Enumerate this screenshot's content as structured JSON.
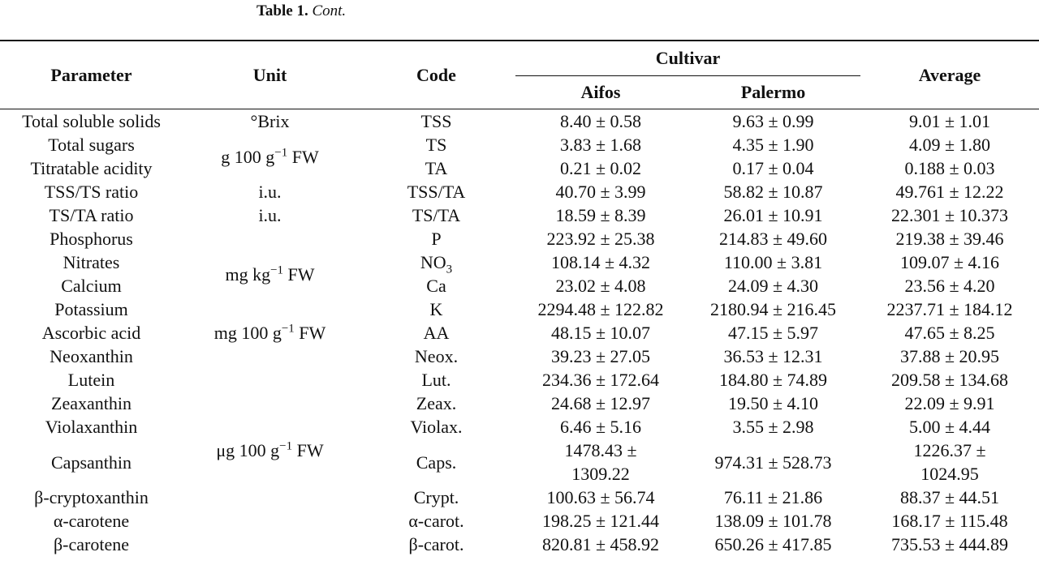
{
  "caption": {
    "label": "Table 1.",
    "text": "Cont."
  },
  "header": {
    "parameter": "Parameter",
    "unit": "Unit",
    "code": "Code",
    "cultivar": "Cultivar",
    "aifos": "Aifos",
    "palermo": "Palermo",
    "average": "Average"
  },
  "units": [
    {
      "text": "°Brix"
    },
    {
      "text": "g 100 g",
      "sup": "−1",
      "tail": " FW"
    },
    {
      "text": "i.u."
    },
    {
      "text": "i.u."
    },
    {
      "text": "mg kg",
      "sup": "−1",
      "tail": " FW"
    },
    {
      "text": "mg 100 g",
      "sup": "−1",
      "tail": " FW"
    },
    {
      "text": "μg 100 g",
      "sup": "−1",
      "tail": " FW"
    }
  ],
  "rows": [
    [
      "Total soluble solids",
      "TSS",
      "8.40 ± 0.58",
      "9.63 ± 0.99",
      "9.01 ± 1.01"
    ],
    [
      "Total sugars",
      "TS",
      "3.83 ± 1.68",
      "4.35 ± 1.90",
      "4.09 ± 1.80"
    ],
    [
      "Titratable acidity",
      "TA",
      "0.21 ± 0.02",
      "0.17 ± 0.04",
      "0.188 ± 0.03"
    ],
    [
      "TSS/TS ratio",
      "TSS/TA",
      "40.70 ± 3.99",
      "58.82 ± 10.87",
      "49.761 ± 12.22"
    ],
    [
      "TS/TA ratio",
      "TS/TA",
      "18.59 ± 8.39",
      "26.01 ± 10.91",
      "22.301 ± 10.373"
    ],
    [
      "Phosphorus",
      "P",
      "223.92 ± 25.38",
      "214.83 ± 49.60",
      "219.38 ± 39.46"
    ],
    [
      "Nitrates",
      {
        "text": "NO",
        "sub": "3"
      },
      "108.14 ± 4.32",
      "110.00 ± 3.81",
      "109.07 ± 4.16"
    ],
    [
      "Calcium",
      "Ca",
      "23.02 ± 4.08",
      "24.09 ± 4.30",
      "23.56 ± 4.20"
    ],
    [
      "Potassium",
      "K",
      "2294.48 ± 122.82",
      "2180.94 ± 216.45",
      "2237.71 ± 184.12"
    ],
    [
      "Ascorbic acid",
      "AA",
      "48.15 ± 10.07",
      "47.15 ± 5.97",
      "47.65 ± 8.25"
    ],
    [
      "Neoxanthin",
      "Neox.",
      "39.23 ± 27.05",
      "36.53 ± 12.31",
      "37.88 ± 20.95"
    ],
    [
      "Lutein",
      "Lut.",
      "234.36 ± 172.64",
      "184.80 ± 74.89",
      "209.58 ± 134.68"
    ],
    [
      "Zeaxanthin",
      "Zeax.",
      "24.68 ± 12.97",
      "19.50 ± 4.10",
      "22.09 ± 9.91"
    ],
    [
      "Violaxanthin",
      "Violax.",
      "6.46 ± 5.16",
      "3.55 ± 2.98",
      "5.00 ± 4.44"
    ],
    [
      "Capsanthin",
      "Caps.",
      "1478.43 ± 1309.22",
      "974.31 ± 528.73",
      "1226.37 ± 1024.95"
    ],
    [
      "β-cryptoxanthin",
      "Crypt.",
      "100.63 ± 56.74",
      "76.11 ± 21.86",
      "88.37 ± 44.51"
    ],
    [
      "α-carotene",
      "α-carot.",
      "198.25 ± 121.44",
      "138.09 ± 101.78",
      "168.17 ± 115.48"
    ],
    [
      "β-carotene",
      "β-carot.",
      "820.81 ± 458.92",
      "650.26 ± 417.85",
      "735.53 ± 444.89"
    ]
  ]
}
